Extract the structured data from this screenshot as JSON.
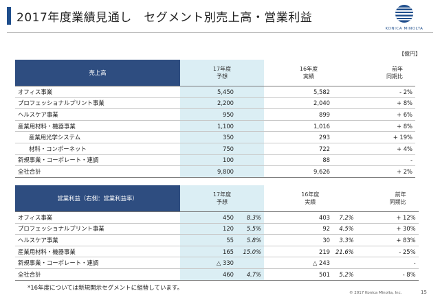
{
  "header": {
    "title": "2017年度業績見通し　セグメント別売上高・営業利益",
    "logo_text": "KONICA MINOLTA"
  },
  "unit": "【億円】",
  "sales": {
    "header": {
      "label": "売上高",
      "fc": [
        "17年度",
        "予想"
      ],
      "act": [
        "16年度",
        "実績"
      ],
      "yoy": [
        "前年",
        "同期比"
      ]
    },
    "rows": [
      {
        "name": "オフィス事業",
        "fc": "5,450",
        "act": "5,582",
        "yoy": "- 2%"
      },
      {
        "name": "プロフェッショナルプリント事業",
        "fc": "2,200",
        "act": "2,040",
        "yoy": "+ 8%"
      },
      {
        "name": "ヘルスケア事業",
        "fc": "950",
        "act": "899",
        "yoy": "+ 6%"
      },
      {
        "name": "産業用材料・機器事業",
        "fc": "1,100",
        "act": "1,016",
        "yoy": "+ 8%"
      },
      {
        "name": "産業用光学システム",
        "fc": "350",
        "act": "293",
        "yoy": "+ 19%"
      },
      {
        "name": "材料・コンポーネット",
        "fc": "750",
        "act": "722",
        "yoy": "+ 4%"
      },
      {
        "name": "新規事業・コーポレート・連調",
        "fc": "100",
        "act": "88",
        "yoy": "-"
      }
    ],
    "total": {
      "name": "全社合計",
      "fc": "9,800",
      "act": "9,626",
      "yoy": "+ 2%"
    }
  },
  "op": {
    "header": {
      "label": "営業利益（右側：営業利益率）",
      "fc": [
        "17年度",
        "予想"
      ],
      "act": [
        "16年度",
        "実績"
      ],
      "yoy": [
        "前年",
        "同期比"
      ]
    },
    "rows": [
      {
        "name": "オフィス事業",
        "fc": "450",
        "fc_rate": "8.3%",
        "act": "403",
        "act_rate": "7.2%",
        "yoy": "+ 12%"
      },
      {
        "name": "プロフェッショナルプリント事業",
        "fc": "120",
        "fc_rate": "5.5%",
        "act": "92",
        "act_rate": "4.5%",
        "yoy": "+ 30%"
      },
      {
        "name": "ヘルスケア事業",
        "fc": "55",
        "fc_rate": "5.8%",
        "act": "30",
        "act_rate": "3.3%",
        "yoy": "+ 83%"
      },
      {
        "name": "産業用材料・機器事業",
        "fc": "165",
        "fc_rate": "15.0%",
        "act": "219",
        "act_rate": "21.6%",
        "yoy": "- 25%"
      },
      {
        "name": "新規事業・コーポレート・連調",
        "fc": "△ 330",
        "fc_rate": "",
        "act": "△ 243",
        "act_rate": "",
        "yoy": "-"
      }
    ],
    "total": {
      "name": "全社合計",
      "fc": "460",
      "fc_rate": "4.7%",
      "act": "501",
      "act_rate": "5.2%",
      "yoy": "- 8%"
    }
  },
  "footnote": "*16年度については新規開示セグメントに組替しています。",
  "copyright": "© 2017 Konica Minolta, Inc.",
  "page_number": "15"
}
